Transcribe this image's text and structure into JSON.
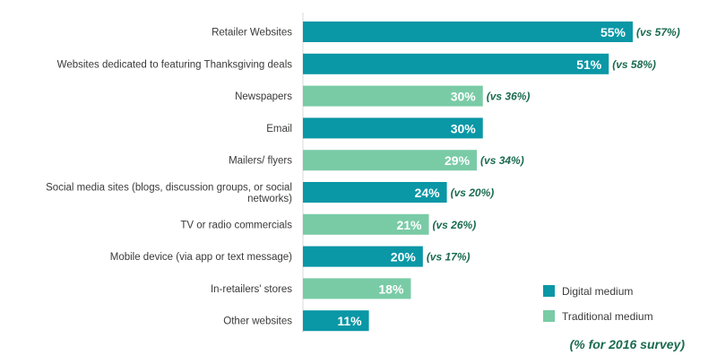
{
  "chart_data": {
    "type": "bar",
    "orientation": "horizontal",
    "categories": [
      "Retailer Websites",
      "Websites dedicated to featuring Thanksgiving deals",
      "Newspapers",
      "Email",
      "Mailers/ flyers",
      "Social media sites (blogs, discussion groups, or social networks)",
      "TV or radio commercials",
      "Mobile device (via app or text message)",
      "In-retailers' stores",
      "Other websites"
    ],
    "values": [
      55,
      51,
      30,
      30,
      29,
      24,
      21,
      20,
      18,
      11
    ],
    "value_labels": [
      "55%",
      "51%",
      "30%",
      "30%",
      "29%",
      "24%",
      "21%",
      "20%",
      "18%",
      "11%"
    ],
    "comparison_labels": [
      "(vs 57%)",
      "(vs 58%)",
      "(vs 36%)",
      "",
      "(vs 34%)",
      "(vs 20%)",
      "(vs 26%)",
      "(vs 17%)",
      "",
      ""
    ],
    "medium": [
      "digital",
      "digital",
      "traditional",
      "digital",
      "traditional",
      "digital",
      "traditional",
      "digital",
      "traditional",
      "digital"
    ],
    "legend": [
      {
        "key": "digital",
        "label": "Digital medium",
        "color": "#0a97a6"
      },
      {
        "key": "traditional",
        "label": "Traditional medium",
        "color": "#79cba6"
      }
    ],
    "legend_position": "bottom-right",
    "note": "(% for 2016 survey)",
    "xlim": [
      0,
      55
    ],
    "grid": false
  },
  "colors": {
    "digital": "#0a97a6",
    "traditional": "#79cba6",
    "comparison_text": "#1a6b4f",
    "category_text": "#3a3a3a",
    "value_text": "#ffffff"
  }
}
